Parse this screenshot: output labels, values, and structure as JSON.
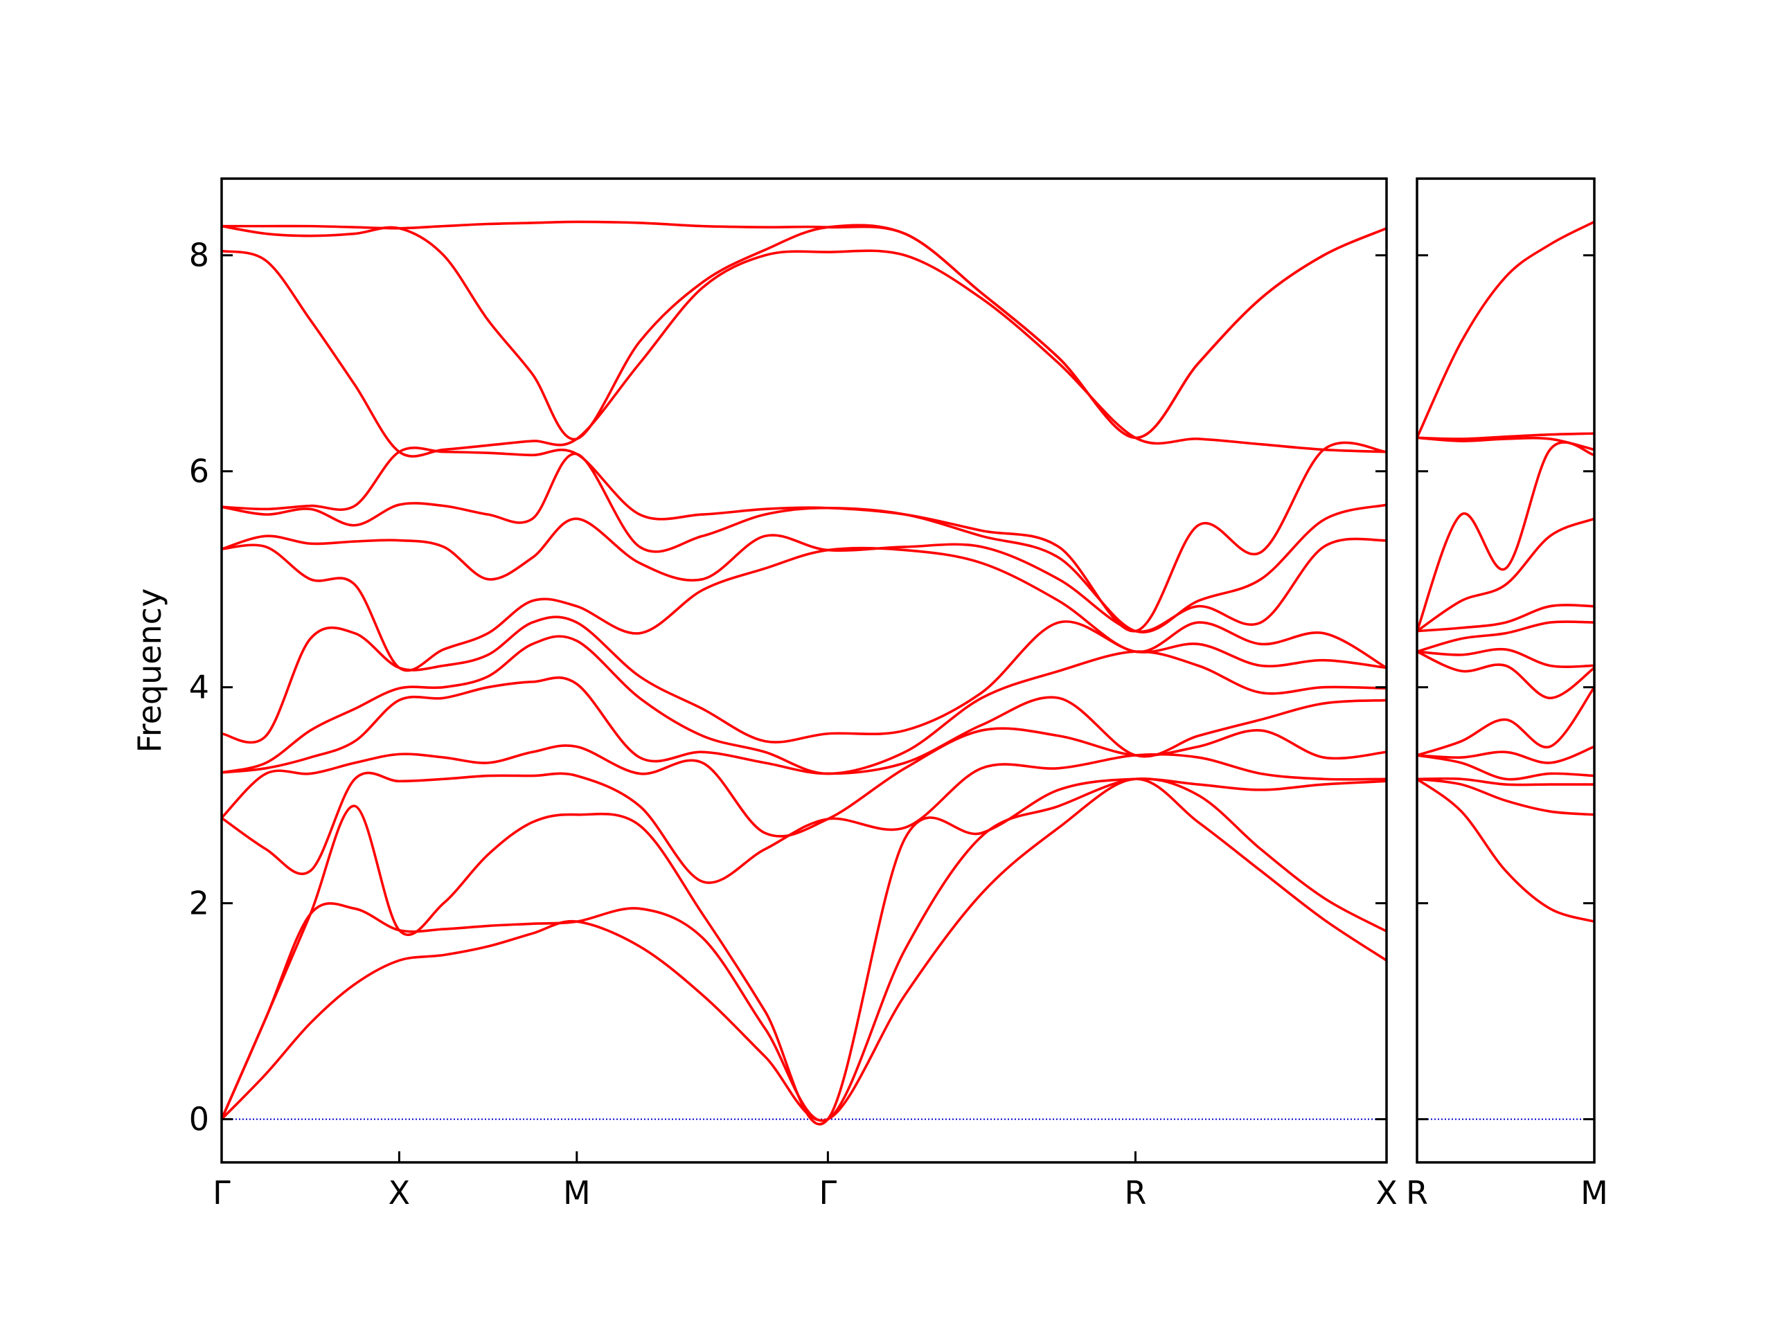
{
  "chart_data": [
    {
      "type": "line",
      "y_label": "Frequency",
      "x": [
        0,
        0.125,
        0.25,
        0.375,
        0.5,
        0.625,
        0.75,
        0.875,
        1.0,
        1.177,
        1.354,
        1.53,
        1.707,
        1.924,
        2.14,
        2.357,
        2.573,
        2.75,
        2.926,
        3.103,
        3.28
      ],
      "xlim": [
        0,
        3.28
      ],
      "xticks": [
        {
          "value": 0,
          "label": "Γ"
        },
        {
          "value": 0.5,
          "label": "X"
        },
        {
          "value": 1.0,
          "label": "M"
        },
        {
          "value": 1.707,
          "label": "Γ"
        },
        {
          "value": 2.573,
          "label": "R"
        },
        {
          "value": 3.28,
          "label": "X"
        }
      ],
      "ylim": [
        -0.4,
        8.71
      ],
      "yticks": [
        0,
        2,
        4,
        6,
        8
      ],
      "show_ytick_labels": true,
      "hline": 0,
      "hline_color": "#0000cc",
      "series": [
        {
          "color": "#ff0000",
          "values": [
            0,
            0.42,
            0.89,
            1.25,
            1.47,
            1.52,
            1.6,
            1.72,
            1.83,
            1.6,
            1.15,
            0.58,
            0,
            1.15,
            2.09,
            2.7,
            3.15,
            2.75,
            2.3,
            1.85,
            1.47
          ]
        },
        {
          "color": "#ff0000",
          "values": [
            0,
            0.94,
            1.9,
            1.95,
            1.75,
            1.76,
            1.79,
            1.81,
            1.83,
            1.95,
            1.68,
            0.84,
            0,
            1.57,
            2.62,
            2.9,
            3.15,
            3.0,
            2.5,
            2.05,
            1.74
          ]
        },
        {
          "color": "#ff0000",
          "values": [
            0,
            0.94,
            1.9,
            2.9,
            1.75,
            2.0,
            2.45,
            2.75,
            2.82,
            2.72,
            1.9,
            1.0,
            0,
            2.6,
            2.65,
            3.05,
            3.15,
            3.1,
            3.05,
            3.1,
            3.13
          ]
        },
        {
          "color": "#ff0000",
          "values": [
            2.79,
            2.5,
            2.3,
            3.15,
            3.13,
            3.15,
            3.18,
            3.18,
            3.18,
            2.9,
            2.2,
            2.5,
            2.78,
            2.7,
            3.25,
            3.25,
            3.37,
            3.35,
            3.2,
            3.15,
            3.15
          ]
        },
        {
          "color": "#ff0000",
          "values": [
            2.79,
            3.2,
            3.2,
            3.3,
            3.38,
            3.35,
            3.3,
            3.4,
            3.45,
            3.2,
            3.3,
            2.65,
            2.78,
            3.25,
            3.6,
            3.55,
            3.37,
            3.45,
            3.6,
            3.35,
            3.4
          ]
        },
        {
          "color": "#ff0000",
          "values": [
            3.21,
            3.25,
            3.35,
            3.5,
            3.88,
            3.9,
            4.0,
            4.05,
            4.03,
            3.35,
            3.4,
            3.3,
            3.2,
            3.3,
            3.65,
            3.9,
            3.37,
            3.55,
            3.7,
            3.85,
            3.88
          ]
        },
        {
          "color": "#ff0000",
          "values": [
            3.21,
            3.3,
            3.6,
            3.8,
            3.99,
            4.0,
            4.1,
            4.4,
            4.43,
            3.9,
            3.55,
            3.4,
            3.2,
            3.4,
            3.9,
            4.15,
            4.33,
            4.2,
            3.95,
            4.0,
            3.99
          ]
        },
        {
          "color": "#ff0000",
          "values": [
            3.57,
            3.55,
            4.45,
            4.5,
            4.18,
            4.2,
            4.3,
            4.6,
            4.6,
            4.1,
            3.8,
            3.5,
            3.57,
            3.6,
            3.95,
            4.6,
            4.33,
            4.4,
            4.2,
            4.25,
            4.18
          ]
        },
        {
          "color": "#ff0000",
          "values": [
            5.28,
            5.3,
            5.0,
            4.95,
            4.18,
            4.35,
            4.5,
            4.8,
            4.75,
            4.5,
            4.9,
            5.1,
            5.27,
            5.27,
            5.15,
            4.8,
            4.33,
            4.6,
            4.4,
            4.5,
            4.18
          ]
        },
        {
          "color": "#ff0000",
          "values": [
            5.28,
            5.4,
            5.33,
            5.35,
            5.36,
            5.3,
            5.0,
            5.2,
            5.56,
            5.15,
            5.0,
            5.4,
            5.27,
            5.3,
            5.3,
            5.0,
            4.52,
            4.75,
            4.6,
            5.3,
            5.36
          ]
        },
        {
          "color": "#ff0000",
          "values": [
            5.67,
            5.6,
            5.65,
            5.5,
            5.69,
            5.68,
            5.6,
            5.56,
            6.16,
            5.3,
            5.4,
            5.6,
            5.66,
            5.6,
            5.4,
            5.2,
            4.52,
            4.8,
            5.0,
            5.55,
            5.69
          ]
        },
        {
          "color": "#ff0000",
          "values": [
            5.67,
            5.65,
            5.68,
            5.68,
            6.18,
            6.18,
            6.17,
            6.15,
            6.16,
            5.6,
            5.6,
            5.65,
            5.66,
            5.6,
            5.45,
            5.3,
            4.52,
            5.5,
            5.25,
            6.2,
            6.18
          ]
        },
        {
          "color": "#ff0000",
          "values": [
            8.04,
            7.95,
            7.4,
            6.8,
            6.18,
            6.2,
            6.24,
            6.28,
            6.3,
            7.0,
            7.7,
            8.0,
            8.03,
            8.0,
            7.6,
            7.0,
            6.31,
            6.3,
            6.25,
            6.2,
            6.18
          ]
        },
        {
          "color": "#ff0000",
          "values": [
            8.27,
            8.2,
            8.18,
            8.2,
            8.25,
            8.0,
            7.4,
            6.9,
            6.3,
            7.2,
            7.75,
            8.05,
            8.26,
            8.2,
            7.65,
            7.05,
            6.31,
            7.0,
            7.6,
            8.0,
            8.25
          ]
        },
        {
          "color": "#ff0000",
          "values": [
            8.27,
            8.27,
            8.27,
            8.26,
            8.25,
            8.27,
            8.29,
            8.3,
            8.31,
            8.3,
            8.27,
            8.26,
            8.26,
            8.2,
            7.65,
            7.05,
            6.31,
            7.0,
            7.6,
            8.0,
            8.25
          ]
        }
      ]
    },
    {
      "type": "line",
      "x": [
        0,
        0.125,
        0.25,
        0.375,
        0.5
      ],
      "xlim": [
        0,
        0.5
      ],
      "xticks": [
        {
          "value": 0,
          "label": "R"
        },
        {
          "value": 0.5,
          "label": "M"
        }
      ],
      "ylim": [
        -0.4,
        8.71
      ],
      "yticks": [
        0,
        2,
        4,
        6,
        8
      ],
      "show_ytick_labels": false,
      "hline": 0,
      "hline_color": "#0000cc",
      "series": [
        {
          "color": "#ff0000",
          "values": [
            3.15,
            2.85,
            2.3,
            1.95,
            1.83
          ]
        },
        {
          "color": "#ff0000",
          "values": [
            3.15,
            3.1,
            2.95,
            2.85,
            2.82
          ]
        },
        {
          "color": "#ff0000",
          "values": [
            3.15,
            3.15,
            3.1,
            3.1,
            3.1
          ]
        },
        {
          "color": "#ff0000",
          "values": [
            3.37,
            3.3,
            3.15,
            3.2,
            3.18
          ]
        },
        {
          "color": "#ff0000",
          "values": [
            3.37,
            3.35,
            3.4,
            3.3,
            3.45
          ]
        },
        {
          "color": "#ff0000",
          "values": [
            3.37,
            3.5,
            3.7,
            3.45,
            4.0
          ]
        },
        {
          "color": "#ff0000",
          "values": [
            4.33,
            4.15,
            4.2,
            3.9,
            4.18
          ]
        },
        {
          "color": "#ff0000",
          "values": [
            4.33,
            4.3,
            4.35,
            4.2,
            4.2
          ]
        },
        {
          "color": "#ff0000",
          "values": [
            4.33,
            4.45,
            4.5,
            4.6,
            4.6
          ]
        },
        {
          "color": "#ff0000",
          "values": [
            4.52,
            4.55,
            4.6,
            4.75,
            4.75
          ]
        },
        {
          "color": "#ff0000",
          "values": [
            4.52,
            4.8,
            4.95,
            5.4,
            5.56
          ]
        },
        {
          "color": "#ff0000",
          "values": [
            4.52,
            5.6,
            5.1,
            6.2,
            6.15
          ]
        },
        {
          "color": "#ff0000",
          "values": [
            6.31,
            6.28,
            6.3,
            6.3,
            6.2
          ]
        },
        {
          "color": "#ff0000",
          "values": [
            6.31,
            6.3,
            6.32,
            6.34,
            6.35
          ]
        },
        {
          "color": "#ff0000",
          "values": [
            6.31,
            7.2,
            7.8,
            8.1,
            8.31
          ]
        }
      ]
    }
  ]
}
